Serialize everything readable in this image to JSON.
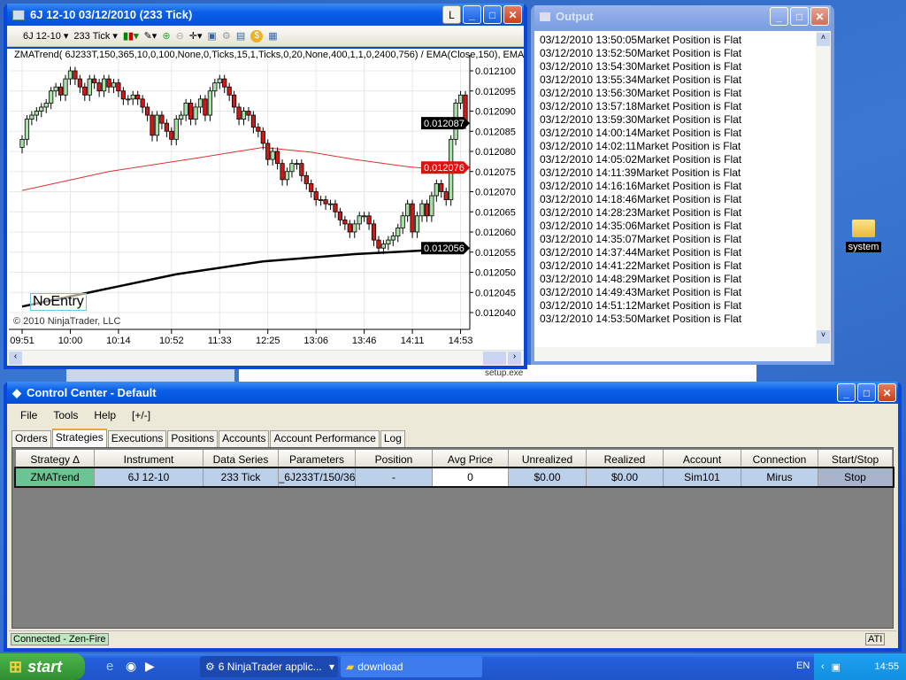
{
  "chart_window": {
    "title": "6J 12-10  03/12/2010 (233 Tick)",
    "instrument": "6J 12-10",
    "period": "233 Tick",
    "link_button": "L",
    "indicator_label": "ZMATrend( 6J233T,150,365,10,0,100,None,0,Ticks,15,1,Ticks,0,20,None,400,1,1,0,2400,756)  / EMA(Close,150),  EMA(",
    "copyright": "© 2010 NinjaTrader, LLC",
    "strategy_state": "NoEntry",
    "toolbar_icons": [
      "chart-style-icon",
      "drawing-tool-icon",
      "zoom-in-icon",
      "zoom-out-icon",
      "crosshair-icon",
      "properties-icon",
      "strategy-icon",
      "indicators-icon",
      "dollar-icon",
      "data-box-icon"
    ]
  },
  "chart_data": {
    "type": "candlestick",
    "ylim": [
      0.012038,
      0.012101
    ],
    "first_open": 0.012081,
    "close": [
      0.012083,
      0.012088,
      0.012089,
      0.01209,
      0.012091,
      0.012092,
      0.012095,
      0.012096,
      0.012094,
      0.012098,
      0.0121,
      0.012098,
      0.012096,
      0.012094,
      0.012098,
      0.012097,
      0.012095,
      0.012098,
      0.012096,
      0.012097,
      0.012095,
      0.012093,
      0.012093,
      0.012094,
      0.012093,
      0.012091,
      0.012089,
      0.012084,
      0.012089,
      0.012087,
      0.012085,
      0.012083,
      0.012088,
      0.012089,
      0.012092,
      0.012088,
      0.012091,
      0.012093,
      0.012089,
      0.012095,
      0.012097,
      0.012098,
      0.012096,
      0.012094,
      0.012091,
      0.012088,
      0.01209,
      0.012089,
      0.012086,
      0.012085,
      0.012082,
      0.012078,
      0.01208,
      0.012077,
      0.012073,
      0.012075,
      0.012077,
      0.012077,
      0.012074,
      0.012072,
      0.01207,
      0.012068,
      0.012068,
      0.012067,
      0.012067,
      0.012065,
      0.012063,
      0.012062,
      0.01206,
      0.012062,
      0.012064,
      0.012064,
      0.012062,
      0.012058,
      0.012056,
      0.012057,
      0.012058,
      0.012059,
      0.012061,
      0.012064,
      0.012067,
      0.01206,
      0.012064,
      0.012067,
      0.012064,
      0.012069,
      0.012072,
      0.01207,
      0.012068,
      0.012083,
      0.012092,
      0.012094,
      0.012087
    ],
    "y_ticks": [
      "0.012100",
      "0.012095",
      "0.012090",
      "0.012085",
      "0.012080",
      "0.012075",
      "0.012070",
      "0.012065",
      "0.012060",
      "0.012055",
      "0.012050",
      "0.012045",
      "0.012040"
    ],
    "x_ticks": [
      {
        "label": "09:51",
        "bar": 0
      },
      {
        "label": "10:00",
        "bar": 10
      },
      {
        "label": "10:14",
        "bar": 20
      },
      {
        "label": "10:52",
        "bar": 31
      },
      {
        "label": "11:33",
        "bar": 41
      },
      {
        "label": "12:25",
        "bar": 51
      },
      {
        "label": "13:06",
        "bar": 61
      },
      {
        "label": "13:46",
        "bar": 71
      },
      {
        "label": "14:11",
        "bar": 81
      },
      {
        "label": "14:53",
        "bar": 91
      }
    ],
    "ema_red": [
      [
        0,
        0.0120703
      ],
      [
        18,
        0.012075
      ],
      [
        37,
        0.0120785
      ],
      [
        50,
        0.012081
      ],
      [
        60,
        0.0120798
      ],
      [
        69,
        0.012078
      ],
      [
        80,
        0.0120762
      ],
      [
        87,
        0.0120754
      ],
      [
        92,
        0.012076
      ]
    ],
    "ema_black": [
      [
        0,
        0.0120415
      ],
      [
        14,
        0.012045
      ],
      [
        32,
        0.0120495
      ],
      [
        50,
        0.0120527
      ],
      [
        69,
        0.0120545
      ],
      [
        80,
        0.0120552
      ],
      [
        92,
        0.012056
      ]
    ],
    "price_markers": [
      {
        "label": "0.012087",
        "value": 0.012087,
        "color": "#000000"
      },
      {
        "label": "0.012076",
        "value": 0.012076,
        "color": "#e01010"
      },
      {
        "label": "0.012056",
        "value": 0.012056,
        "color": "#000000"
      }
    ],
    "colors": {
      "up": "#a8e0a8",
      "down": "#d01818",
      "ema_red": "#e03030",
      "ema_black": "#000000"
    }
  },
  "output_window": {
    "title": "Output",
    "lines": [
      "03/12/2010 13:50:05Market Position is Flat",
      "03/12/2010 13:52:50Market Position is Flat",
      "03/12/2010 13:54:30Market Position is Flat",
      "03/12/2010 13:55:34Market Position is Flat",
      "03/12/2010 13:56:30Market Position is Flat",
      "03/12/2010 13:57:18Market Position is Flat",
      "03/12/2010 13:59:30Market Position is Flat",
      "03/12/2010 14:00:14Market Position is Flat",
      "03/12/2010 14:02:11Market Position is Flat",
      "03/12/2010 14:05:02Market Position is Flat",
      "03/12/2010 14:11:39Market Position is Flat",
      "03/12/2010 14:16:16Market Position is Flat",
      "03/12/2010 14:18:46Market Position is Flat",
      "03/12/2010 14:28:23Market Position is Flat",
      "03/12/2010 14:35:06Market Position is Flat",
      "03/12/2010 14:35:07Market Position is Flat",
      "03/12/2010 14:37:44Market Position is Flat",
      "03/12/2010 14:41:22Market Position is Flat",
      "03/12/2010 14:48:29Market Position is Flat",
      "03/12/2010 14:49:43Market Position is Flat",
      "03/12/2010 14:51:12Market Position is Flat",
      "03/12/2010 14:53:50Market Position is Flat"
    ]
  },
  "desktop": {
    "folder_label": "system",
    "background_file": "setup.exe"
  },
  "control_center": {
    "title": "Control Center - Default",
    "menu": [
      "File",
      "Tools",
      "Help",
      "[+/-]"
    ],
    "tabs": [
      "Orders",
      "Strategies",
      "Executions",
      "Positions",
      "Accounts",
      "Account Performance",
      "Log"
    ],
    "selected_tab": "Strategies",
    "columns": [
      "Strategy  ∆",
      "Instrument",
      "Data Series",
      "Parameters",
      "Position",
      "Avg Price",
      "Unrealized",
      "Realized",
      "Account",
      "Connection",
      "Start/Stop"
    ],
    "rows": [
      [
        "ZMATrend",
        "6J 12-10",
        "233 Tick",
        "_6J233T/150/36",
        "-",
        "0",
        "$0.00",
        "$0.00",
        "Sim101",
        "Mirus",
        "Stop"
      ]
    ],
    "status": "Connected - Zen-Fire",
    "status_right": "ATI"
  },
  "taskbar": {
    "start": "start",
    "tasks": [
      {
        "label": "6 NinjaTrader applic...",
        "icon": "ninjatrader-icon"
      },
      {
        "label": "download",
        "icon": "folder-icon"
      }
    ],
    "lang": "EN",
    "clock": "14:55"
  }
}
